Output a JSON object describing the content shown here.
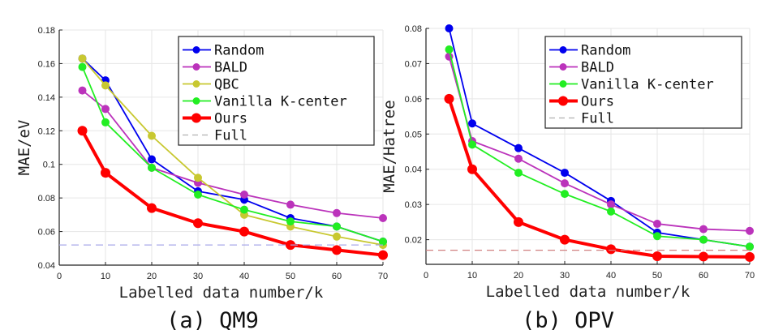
{
  "chart_data": [
    {
      "type": "line",
      "panel": "a",
      "caption": "(a) QM9",
      "xlabel": "Labelled data number/k",
      "ylabel": "MAE/eV",
      "xlim": [
        0,
        70
      ],
      "ylim": [
        0.04,
        0.18
      ],
      "xticks": [
        "0",
        "10",
        "20",
        "30",
        "40",
        "50",
        "60",
        "70"
      ],
      "yticks": [
        "0.04",
        "0.06",
        "0.08",
        "0.1",
        "0.12",
        "0.14",
        "0.16",
        "0.18"
      ],
      "grid": true,
      "legend_position": "top-right",
      "x": [
        5,
        10,
        20,
        30,
        40,
        50,
        60,
        70
      ],
      "series": [
        {
          "name": "Random",
          "color": "#0000ee",
          "values": [
            0.163,
            0.15,
            0.103,
            0.084,
            0.079,
            0.068,
            0.063,
            0.054
          ]
        },
        {
          "name": "BALD",
          "color": "#bb33bb",
          "values": [
            0.144,
            0.133,
            0.098,
            0.089,
            0.082,
            0.076,
            0.071,
            0.068
          ]
        },
        {
          "name": "QBC",
          "color": "#c8c830",
          "values": [
            0.163,
            0.147,
            0.117,
            0.092,
            0.07,
            0.063,
            0.057,
            0.052
          ]
        },
        {
          "name": "Vanilla K-center",
          "color": "#22ee22",
          "values": [
            0.158,
            0.125,
            0.098,
            0.082,
            0.073,
            0.066,
            0.063,
            0.054
          ]
        },
        {
          "name": "Ours",
          "color": "#ff0000",
          "bold": true,
          "values": [
            0.12,
            0.095,
            0.074,
            0.065,
            0.06,
            0.052,
            0.049,
            0.046
          ]
        },
        {
          "name": "Full",
          "color": "#a8a8e8",
          "dashed": true,
          "constant": 0.052
        }
      ]
    },
    {
      "type": "line",
      "panel": "b",
      "caption": "(b) OPV",
      "xlabel": "Labelled data number/k",
      "ylabel": "MAE/Hatree",
      "xlim": [
        0,
        70
      ],
      "ylim": [
        0.013,
        0.08
      ],
      "xticks": [
        "0",
        "10",
        "20",
        "30",
        "40",
        "50",
        "60",
        "70"
      ],
      "yticks": [
        "0.02",
        "0.03",
        "0.04",
        "0.05",
        "0.06",
        "0.07",
        "0.08"
      ],
      "grid": true,
      "legend_position": "top-right",
      "x": [
        5,
        10,
        20,
        30,
        40,
        50,
        60,
        70
      ],
      "series": [
        {
          "name": "Random",
          "color": "#0000ee",
          "values": [
            0.08,
            0.053,
            0.046,
            0.039,
            0.031,
            0.022,
            0.02,
            0.018
          ]
        },
        {
          "name": "BALD",
          "color": "#bb33bb",
          "values": [
            0.072,
            0.048,
            0.043,
            0.036,
            0.03,
            0.0245,
            0.023,
            0.0225
          ]
        },
        {
          "name": "Vanilla K-center",
          "color": "#22ee22",
          "values": [
            0.074,
            0.047,
            0.039,
            0.033,
            0.028,
            0.021,
            0.02,
            0.018
          ]
        },
        {
          "name": "Ours",
          "color": "#ff0000",
          "bold": true,
          "values": [
            0.06,
            0.04,
            0.025,
            0.02,
            0.0173,
            0.0153,
            0.0152,
            0.0151
          ]
        },
        {
          "name": "Full",
          "color": "#d08080",
          "dashed": true,
          "constant": 0.017
        }
      ]
    }
  ]
}
